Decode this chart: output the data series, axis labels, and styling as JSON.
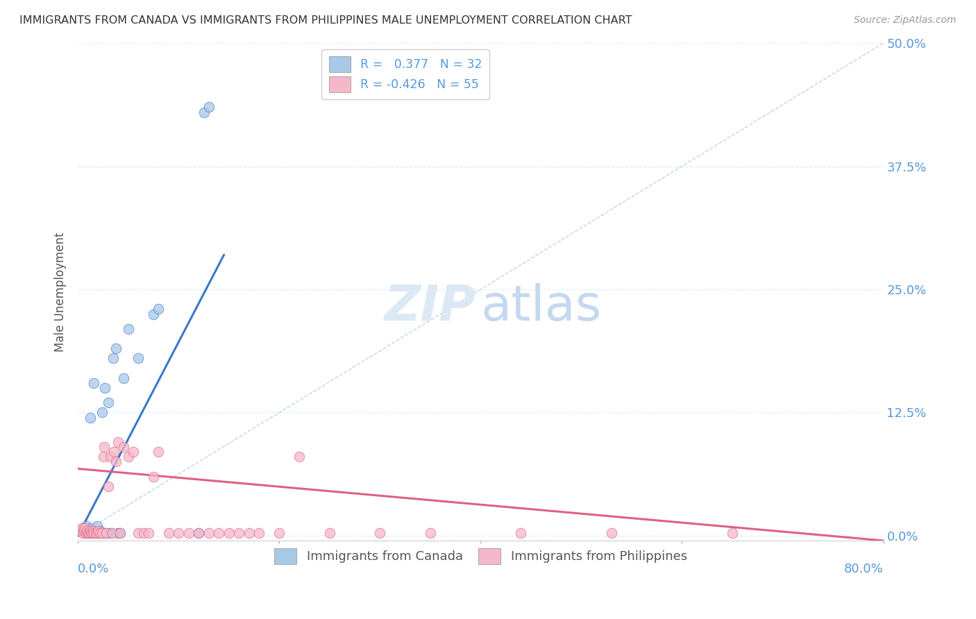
{
  "title": "IMMIGRANTS FROM CANADA VS IMMIGRANTS FROM PHILIPPINES MALE UNEMPLOYMENT CORRELATION CHART",
  "source": "Source: ZipAtlas.com",
  "ylabel": "Male Unemployment",
  "ytick_labels": [
    "0.0%",
    "12.5%",
    "25.0%",
    "37.5%",
    "50.0%"
  ],
  "ytick_values": [
    0.0,
    0.125,
    0.25,
    0.375,
    0.5
  ],
  "xlim": [
    0.0,
    0.8
  ],
  "ylim": [
    -0.005,
    0.5
  ],
  "canada_color": "#a8c8e8",
  "canada_color_line": "#3a78c9",
  "philippines_color": "#f5b8ca",
  "philippines_color_line": "#e06080",
  "background_color": "#ffffff",
  "title_color": "#333333",
  "tick_label_color": "#5599dd",
  "grid_color": "#ddeeff",
  "watermark_zip_color": "#dce9f5",
  "watermark_atlas_color": "#c5d8ee",
  "canada_scatter_x": [
    0.003,
    0.005,
    0.007,
    0.008,
    0.01,
    0.01,
    0.012,
    0.013,
    0.015,
    0.016,
    0.018,
    0.019,
    0.02,
    0.022,
    0.024,
    0.025,
    0.027,
    0.028,
    0.03,
    0.032,
    0.035,
    0.038,
    0.04,
    0.042,
    0.045,
    0.05,
    0.06,
    0.075,
    0.08,
    0.12,
    0.125,
    0.13
  ],
  "canada_scatter_y": [
    0.005,
    0.008,
    0.003,
    0.01,
    0.005,
    0.003,
    0.12,
    0.008,
    0.003,
    0.155,
    0.005,
    0.01,
    0.003,
    0.005,
    0.125,
    0.003,
    0.15,
    0.003,
    0.135,
    0.003,
    0.18,
    0.19,
    0.003,
    0.003,
    0.16,
    0.21,
    0.18,
    0.225,
    0.23,
    0.003,
    0.43,
    0.435
  ],
  "philippines_scatter_x": [
    0.003,
    0.004,
    0.005,
    0.006,
    0.007,
    0.008,
    0.009,
    0.01,
    0.011,
    0.012,
    0.013,
    0.014,
    0.015,
    0.016,
    0.018,
    0.019,
    0.02,
    0.022,
    0.024,
    0.025,
    0.026,
    0.028,
    0.03,
    0.032,
    0.034,
    0.036,
    0.038,
    0.04,
    0.042,
    0.045,
    0.05,
    0.055,
    0.06,
    0.065,
    0.07,
    0.075,
    0.08,
    0.09,
    0.1,
    0.11,
    0.12,
    0.13,
    0.14,
    0.15,
    0.16,
    0.17,
    0.18,
    0.2,
    0.22,
    0.25,
    0.3,
    0.35,
    0.44,
    0.53,
    0.65
  ],
  "philippines_scatter_y": [
    0.005,
    0.008,
    0.003,
    0.005,
    0.008,
    0.003,
    0.005,
    0.003,
    0.003,
    0.005,
    0.003,
    0.003,
    0.005,
    0.003,
    0.003,
    0.003,
    0.005,
    0.003,
    0.003,
    0.08,
    0.09,
    0.003,
    0.05,
    0.08,
    0.003,
    0.085,
    0.075,
    0.095,
    0.003,
    0.09,
    0.08,
    0.085,
    0.003,
    0.003,
    0.003,
    0.06,
    0.085,
    0.003,
    0.003,
    0.003,
    0.003,
    0.003,
    0.003,
    0.003,
    0.003,
    0.003,
    0.003,
    0.003,
    0.08,
    0.003,
    0.003,
    0.003,
    0.003,
    0.003,
    0.003
  ],
  "canada_line_x0": 0.0,
  "canada_line_x1": 0.145,
  "canada_line_y0": 0.0,
  "canada_line_y1": 0.285,
  "philippines_line_x0": 0.0,
  "philippines_line_x1": 0.8,
  "philippines_line_y0": 0.068,
  "philippines_line_y1": -0.005,
  "diag_line_x": [
    0.0,
    0.8
  ],
  "diag_line_y": [
    0.0,
    0.5
  ]
}
